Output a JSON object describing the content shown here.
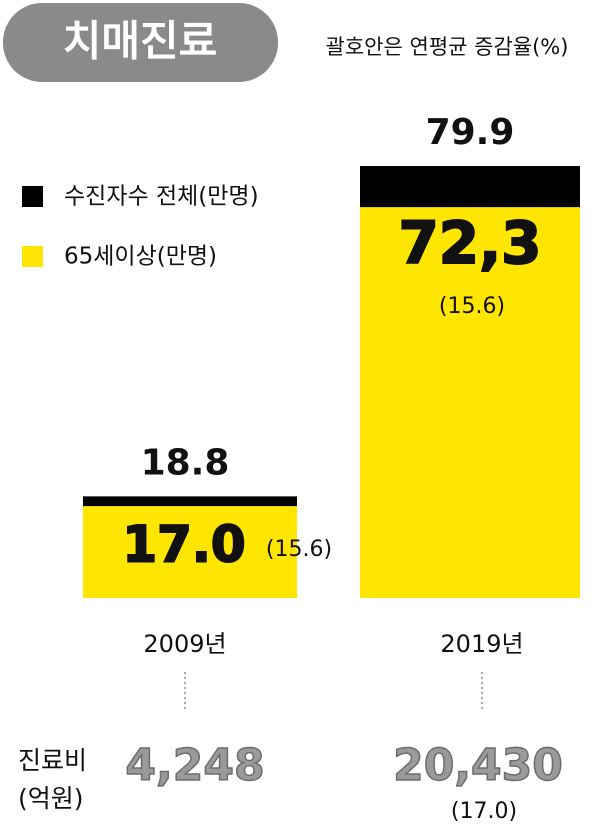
{
  "chart_data": {
    "type": "bar",
    "title": "치매진료",
    "subtitle": "괄호안은 연평균 증감율(%)",
    "categories": [
      "2009년",
      "2019년"
    ],
    "series": [
      {
        "name": "수진자수 전체(만명)",
        "color": "#000000",
        "values": [
          18.8,
          79.9
        ]
      },
      {
        "name": "65세이상(만명)",
        "color": "#ffe600",
        "values": [
          17.0,
          72.3
        ],
        "value_labels": [
          "17.0",
          "72,3"
        ]
      }
    ],
    "growth": [
      15.6,
      15.6
    ],
    "growth_labels": [
      "(15.6)",
      "(15.6)"
    ],
    "cost_label": [
      "진료비",
      "(억원)"
    ],
    "cost_values": [
      4248,
      20430
    ],
    "cost_value_labels": [
      "4,248",
      "20,430"
    ],
    "cost_growth": [
      null,
      17.0
    ],
    "cost_growth_labels": [
      null,
      "(17.0)"
    ],
    "ylim": [
      0,
      80
    ]
  }
}
